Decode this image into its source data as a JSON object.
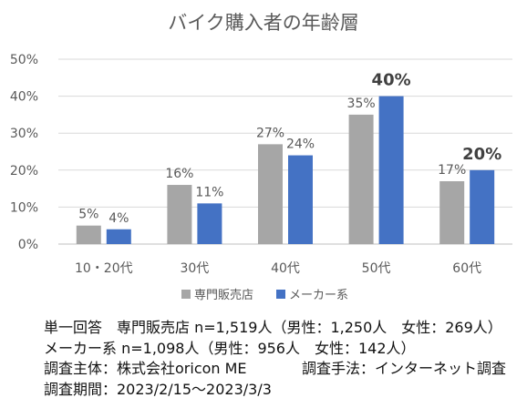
{
  "chart_data": {
    "type": "bar",
    "title": "バイク購入者の年齢層",
    "categories": [
      "10・20代",
      "30代",
      "40代",
      "50代",
      "60代"
    ],
    "series": [
      {
        "name": "専門販売店",
        "values": [
          5,
          16,
          27,
          35,
          17
        ],
        "labels": [
          "5%",
          "16%",
          "27%",
          "35%",
          "17%"
        ],
        "color": "#a6a6a6"
      },
      {
        "name": "メーカー系",
        "values": [
          4,
          11,
          24,
          40,
          20
        ],
        "labels": [
          "4%",
          "11%",
          "24%",
          "40%",
          "20%"
        ],
        "color": "#4472c4"
      }
    ],
    "emphasized_labels": [
      "40%",
      "20%"
    ],
    "yticks": [
      "0%",
      "10%",
      "20%",
      "30%",
      "40%",
      "50%"
    ],
    "ylim": [
      0,
      50
    ],
    "grid": true,
    "legend_position": "bottom"
  },
  "notes": {
    "line1": "単一回答　専門販売店 n=1,519人（男性：1,250人　女性：269人）",
    "line2": "メーカー系 n=1,098人（男性：956人　女性：142人）",
    "line3_left": "調査主体：株式会社oricon ME",
    "line3_right": "調査手法：インターネット調査",
    "line4": "調査期間：2023/2/15～2023/3/3"
  }
}
